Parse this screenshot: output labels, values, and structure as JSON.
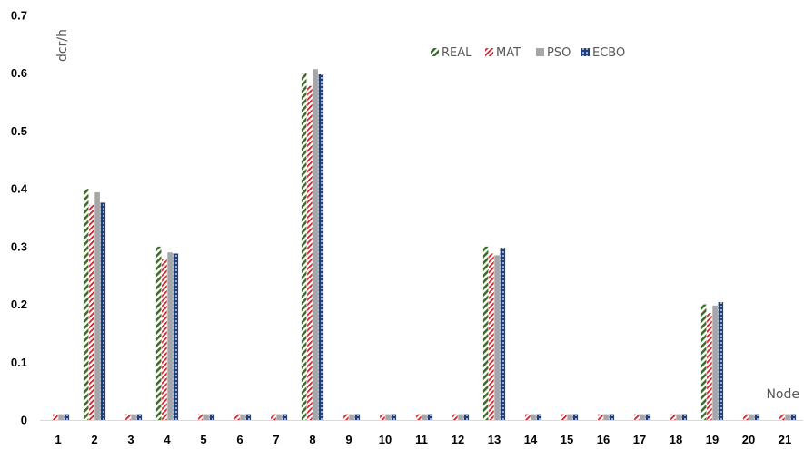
{
  "chart_data": {
    "type": "bar",
    "ylabel": "dcr/h",
    "xlabel": "Node",
    "ylim": [
      0,
      0.7
    ],
    "yticks": [
      0,
      0.1,
      0.2,
      0.3,
      0.4,
      0.5,
      0.6,
      0.7
    ],
    "ytick_labels": [
      "0",
      "0.1",
      "0.2",
      "0.3",
      "0.4",
      "0.5",
      "0.6",
      "0.7"
    ],
    "categories": [
      "1",
      "2",
      "3",
      "4",
      "5",
      "6",
      "7",
      "8",
      "9",
      "10",
      "11",
      "12",
      "13",
      "14",
      "15",
      "16",
      "17",
      "18",
      "19",
      "20",
      "21"
    ],
    "grid": false,
    "legend_position": "top-right",
    "series": [
      {
        "name": "REAL",
        "pattern": "diagonal-hatch",
        "color": "#3f6b2f",
        "values": [
          0,
          0.4,
          0,
          0.3,
          0,
          0,
          0,
          0.6,
          0,
          0,
          0,
          0,
          0.3,
          0,
          0,
          0,
          0,
          0,
          0.2,
          0,
          0
        ]
      },
      {
        "name": "MAT",
        "pattern": "diagonal-hatch",
        "color": "#d0202a",
        "values": [
          0.01,
          0.372,
          0.01,
          0.278,
          0.01,
          0.01,
          0.01,
          0.578,
          0.01,
          0.01,
          0.01,
          0.01,
          0.288,
          0.01,
          0.01,
          0.01,
          0.01,
          0.01,
          0.185,
          0.01,
          0.01
        ]
      },
      {
        "name": "PSO",
        "pattern": "solid",
        "color": "#a6a6a6",
        "values": [
          0.01,
          0.394,
          0.01,
          0.29,
          0.01,
          0.01,
          0.01,
          0.607,
          0.01,
          0.01,
          0.01,
          0.01,
          0.285,
          0.01,
          0.01,
          0.01,
          0.01,
          0.01,
          0.198,
          0.01,
          0.01
        ]
      },
      {
        "name": "ECBO",
        "pattern": "checker",
        "color": "#1f3e7a",
        "values": [
          0.01,
          0.376,
          0.01,
          0.288,
          0.01,
          0.01,
          0.01,
          0.598,
          0.01,
          0.01,
          0.01,
          0.01,
          0.298,
          0.01,
          0.01,
          0.01,
          0.01,
          0.01,
          0.204,
          0.01,
          0.01
        ]
      }
    ]
  }
}
